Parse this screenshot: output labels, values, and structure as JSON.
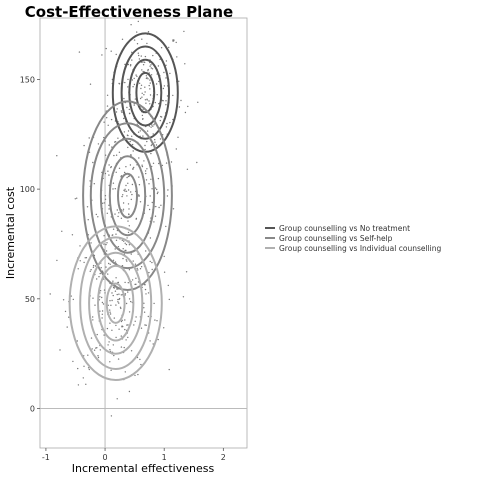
{
  "chart_data": {
    "type": "scatter",
    "title": "Cost-Effectiveness Plane",
    "xlabel": "Incremental effectiveness",
    "ylabel": "Incremental cost",
    "xlim": [
      -1.1,
      2.4
    ],
    "ylim": [
      -18,
      178
    ],
    "x_ticks": [
      "-1",
      "0",
      "1",
      "2"
    ],
    "y_ticks": [
      "0",
      "50",
      "100",
      "150"
    ],
    "reference_lines": {
      "x": 0,
      "y": 0
    },
    "grid": false,
    "legend_position": "right",
    "series": [
      {
        "name": "Group counselling vs No treatment",
        "color": "#555555",
        "center": [
          0.68,
          144
        ],
        "spread": [
          0.32,
          16
        ],
        "n_points": 260,
        "contours": [
          [
            0.15,
            9
          ],
          [
            0.27,
            15
          ],
          [
            0.4,
            21
          ],
          [
            0.55,
            27
          ]
        ]
      },
      {
        "name": "Group counselling vs Self-help",
        "color": "#888888",
        "center": [
          0.38,
          97
        ],
        "spread": [
          0.42,
          18
        ],
        "n_points": 220,
        "contours": [
          [
            0.16,
            10
          ],
          [
            0.3,
            18
          ],
          [
            0.45,
            26
          ],
          [
            0.62,
            33
          ],
          [
            0.75,
            43
          ]
        ]
      },
      {
        "name": "Group counselling vs Individual counselling",
        "color": "#b0b0b0",
        "center": [
          0.18,
          48
        ],
        "spread": [
          0.38,
          18
        ],
        "n_points": 260,
        "contours": [
          [
            0.15,
            9
          ],
          [
            0.3,
            17
          ],
          [
            0.45,
            23
          ],
          [
            0.6,
            30
          ],
          [
            0.78,
            35
          ]
        ]
      }
    ]
  }
}
